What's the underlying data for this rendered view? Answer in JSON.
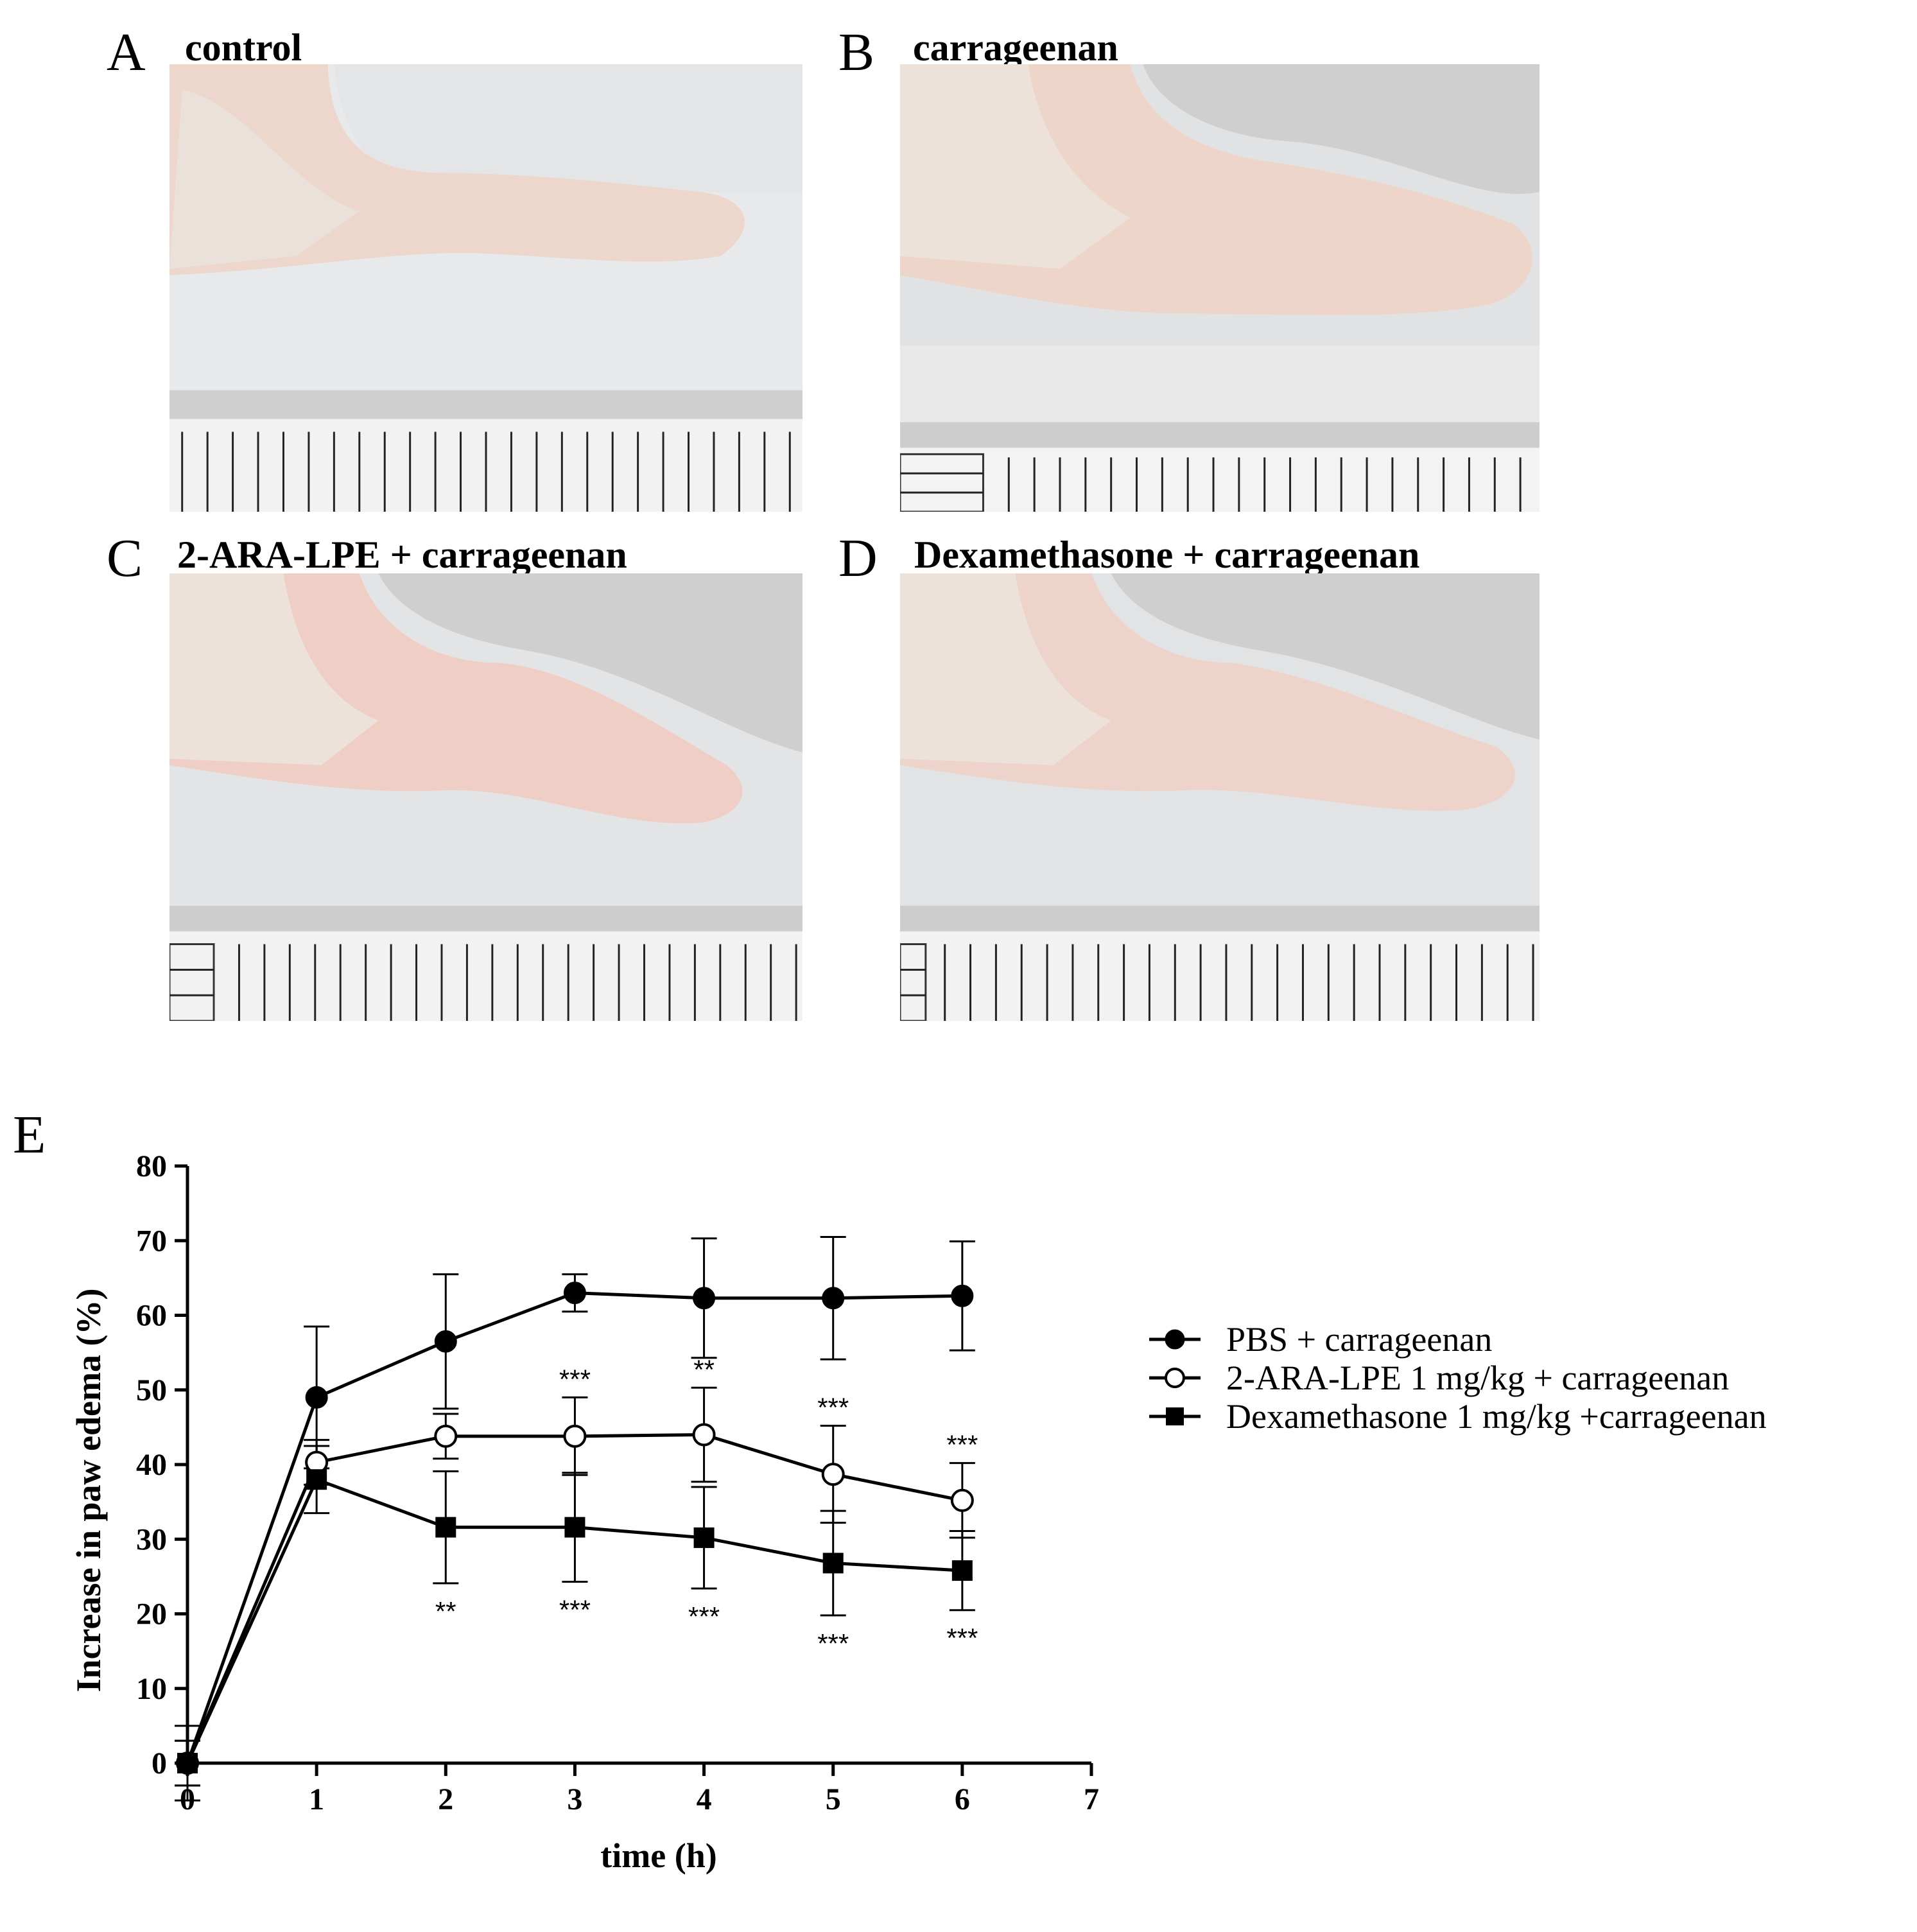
{
  "panels": [
    {
      "letter": "A",
      "title": "control"
    },
    {
      "letter": "B",
      "title": "carrageenan"
    },
    {
      "letter": "C",
      "title": "2-ARA-LPE  + carrageenan"
    },
    {
      "letter": "D",
      "title": "Dexamethasone  + carrageenan"
    }
  ],
  "chart_letter": "E",
  "chart_data": {
    "type": "line",
    "xlabel": "time (h)",
    "ylabel": "Increase in paw edema (%)",
    "xlim": [
      0,
      7
    ],
    "ylim": [
      0,
      80
    ],
    "xticks": [
      0,
      1,
      2,
      3,
      4,
      5,
      6,
      7
    ],
    "yticks": [
      0,
      10,
      20,
      30,
      40,
      50,
      60,
      70,
      80
    ],
    "x": [
      0,
      1,
      2,
      3,
      4,
      5,
      6
    ],
    "legend_position": "right",
    "series": [
      {
        "name": "PBS  + carrageenan",
        "marker": "filled-circle",
        "values": [
          0,
          49,
          56.5,
          63,
          62.3,
          62.3,
          62.6
        ],
        "error": [
          5,
          9.5,
          9,
          2.5,
          8,
          8.2,
          7.3
        ],
        "stars": [
          "",
          "",
          "",
          "",
          "",
          "",
          ""
        ]
      },
      {
        "name": "2-ARA-LPE 1 mg/kg + carrageenan",
        "marker": "open-circle",
        "values": [
          0,
          40.3,
          43.8,
          43.8,
          44,
          38.7,
          35.2
        ],
        "error": [
          3,
          3,
          3,
          5.2,
          6.3,
          6.5,
          5
        ],
        "stars": [
          "",
          "",
          "",
          "***",
          "**",
          "***",
          "***"
        ]
      },
      {
        "name": "Dexamethasone 1 mg/kg +carrageenan",
        "marker": "filled-square",
        "values": [
          0,
          38,
          31.6,
          31.6,
          30.2,
          26.8,
          25.8
        ],
        "error": [
          3,
          4.5,
          7.5,
          7.3,
          6.8,
          7,
          5.3
        ],
        "stars": [
          "",
          "",
          "**",
          "***",
          "***",
          "***",
          "***"
        ]
      }
    ]
  }
}
